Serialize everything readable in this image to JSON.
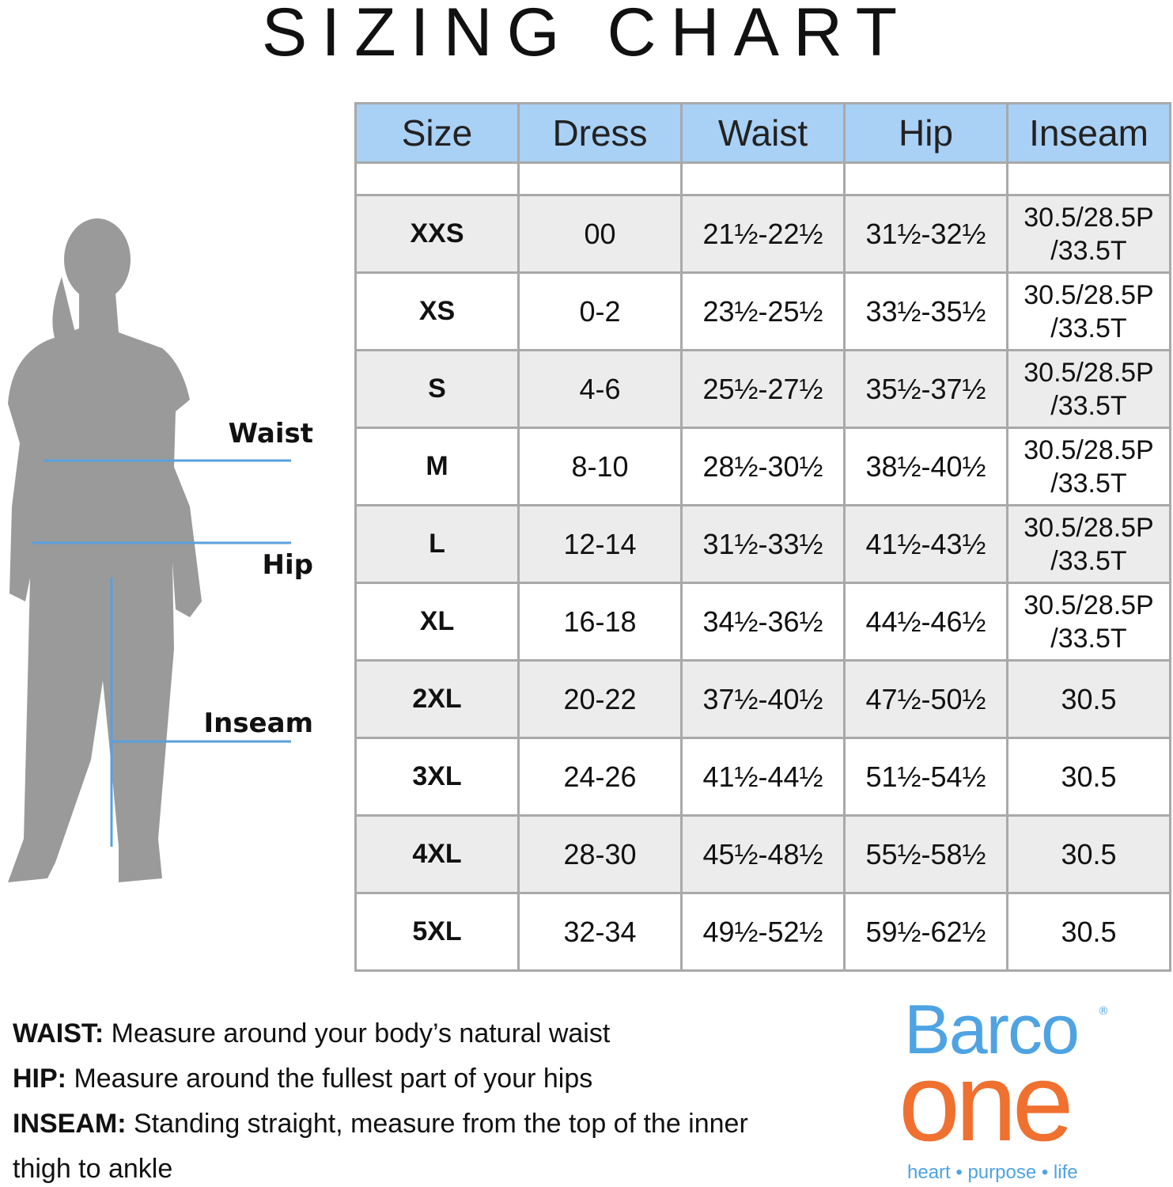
{
  "header": {
    "title": "SIZING CHART"
  },
  "figure": {
    "labels": [
      "Waist",
      "Hip",
      "Inseam"
    ]
  },
  "table": {
    "headers": [
      "Size",
      "Dress",
      "Waist",
      "Hip",
      "Inseam"
    ],
    "rows": [
      [
        "XXS",
        "00",
        "21½-22½",
        "31½-32½",
        [
          "30.5/28.5P",
          "/33.5T"
        ]
      ],
      [
        "XS",
        "0-2",
        "23½-25½",
        "33½-35½",
        [
          "30.5/28.5P",
          "/33.5T"
        ]
      ],
      [
        "S",
        "4-6",
        "25½-27½",
        "35½-37½",
        [
          "30.5/28.5P",
          "/33.5T"
        ]
      ],
      [
        "M",
        "8-10",
        "28½-30½",
        "38½-40½",
        [
          "30.5/28.5P",
          "/33.5T"
        ]
      ],
      [
        "L",
        "12-14",
        "31½-33½",
        "41½-43½",
        [
          "30.5/28.5P",
          "/33.5T"
        ]
      ],
      [
        "XL",
        "16-18",
        "34½-36½",
        "44½-46½",
        [
          "30.5/28.5P",
          "/33.5T"
        ]
      ],
      [
        "2XL",
        "20-22",
        "37½-40½",
        "47½-50½",
        "30.5"
      ],
      [
        "3XL",
        "24-26",
        "41½-44½",
        "51½-54½",
        "30.5"
      ],
      [
        "4XL",
        "28-30",
        "45½-48½",
        "55½-58½",
        "30.5"
      ],
      [
        "5XL",
        "32-34",
        "49½-52½",
        "59½-62½",
        "30.5"
      ]
    ]
  },
  "notes": [
    {
      "label": "WAIST:",
      "text": "Measure around your body’s natural waist"
    },
    {
      "label": "HIP:",
      "text": "Measure around the fullest part of your hips"
    },
    {
      "label": "INSEAM:",
      "text": "Standing straight, measure from the top of the inner thigh to ankle"
    }
  ],
  "logo": {
    "brand": "Barco",
    "mark": "®",
    "sub": "one",
    "tagline": "heart • purpose • life"
  }
}
